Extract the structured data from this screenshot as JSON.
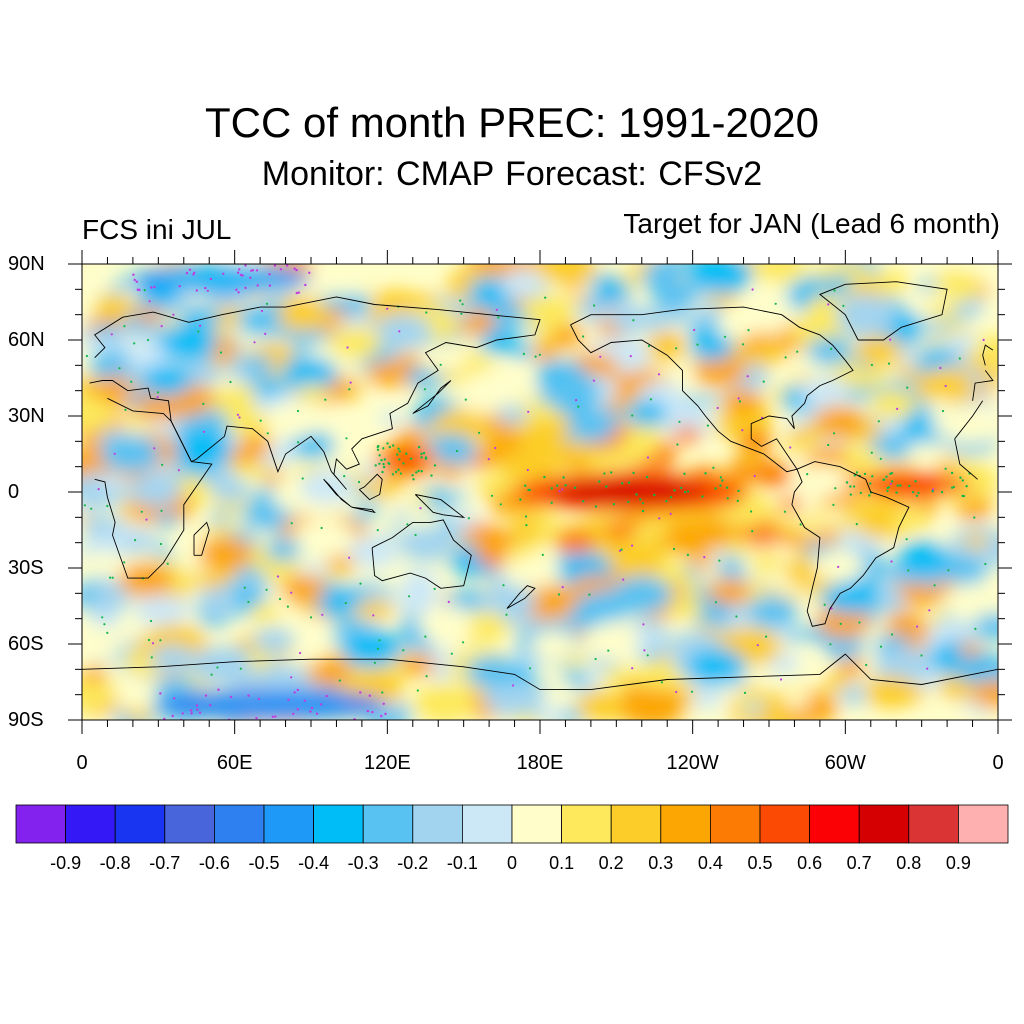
{
  "figure": {
    "title": "TCC of month PREC: 1991-2020",
    "subtitle": "Monitor: CMAP   Forecast: CFSv2",
    "left_label": "FCS ini JUL",
    "right_label": "Target for JAN (Lead 6 month)"
  },
  "map": {
    "projection": "cylindrical equidistant",
    "lon_range": [
      0,
      360
    ],
    "lat_range": [
      -90,
      90
    ],
    "lat_labels": [
      "90N",
      "60N",
      "30N",
      "0",
      "30S",
      "60S",
      "90S"
    ],
    "lon_labels": [
      "0",
      "60E",
      "120E",
      "180E",
      "120W",
      "60W",
      "0"
    ],
    "stippling_legend": "dots mark statistically significant correlation"
  },
  "chart_data": {
    "type": "heatmap",
    "variable": "TCC of month PREC",
    "period": "1991-2020",
    "value_range": [
      -1,
      1
    ],
    "highlights": [
      {
        "region": "equatorial central-east Pacific",
        "lon": [
          170,
          260
        ],
        "lat": [
          -8,
          8
        ],
        "value": 0.7
      },
      {
        "region": "tropical Atlantic",
        "lon": [
          300,
          350
        ],
        "lat": [
          -2,
          8
        ],
        "value": 0.6
      },
      {
        "region": "western Pacific / Philippines",
        "lon": [
          115,
          140
        ],
        "lat": [
          5,
          20
        ],
        "value": 0.5
      },
      {
        "region": "southern Indian Ocean low",
        "lon": [
          30,
          120
        ],
        "lat": [
          -90,
          -78
        ],
        "value": -0.4
      },
      {
        "region": "Arctic low band",
        "lon": [
          20,
          90
        ],
        "lat": [
          78,
          90
        ],
        "value": -0.3
      }
    ]
  },
  "colorbar": {
    "labels": [
      "-0.9",
      "-0.8",
      "-0.7",
      "-0.6",
      "-0.5",
      "-0.4",
      "-0.3",
      "-0.2",
      "-0.1",
      "0",
      "0.1",
      "0.2",
      "0.3",
      "0.4",
      "0.5",
      "0.6",
      "0.7",
      "0.8",
      "0.9"
    ],
    "colors": [
      "#8322ee",
      "#3418f5",
      "#1a35f2",
      "#4865dc",
      "#2e7ff0",
      "#1f99f7",
      "#01bdf7",
      "#58c2f2",
      "#a3d4ef",
      "#cce8f7",
      "#fffecb",
      "#fde95b",
      "#fccd28",
      "#fca603",
      "#fc7b05",
      "#fb4a04",
      "#fb0005",
      "#d50001",
      "#db3434",
      "#feb0b0"
    ]
  }
}
